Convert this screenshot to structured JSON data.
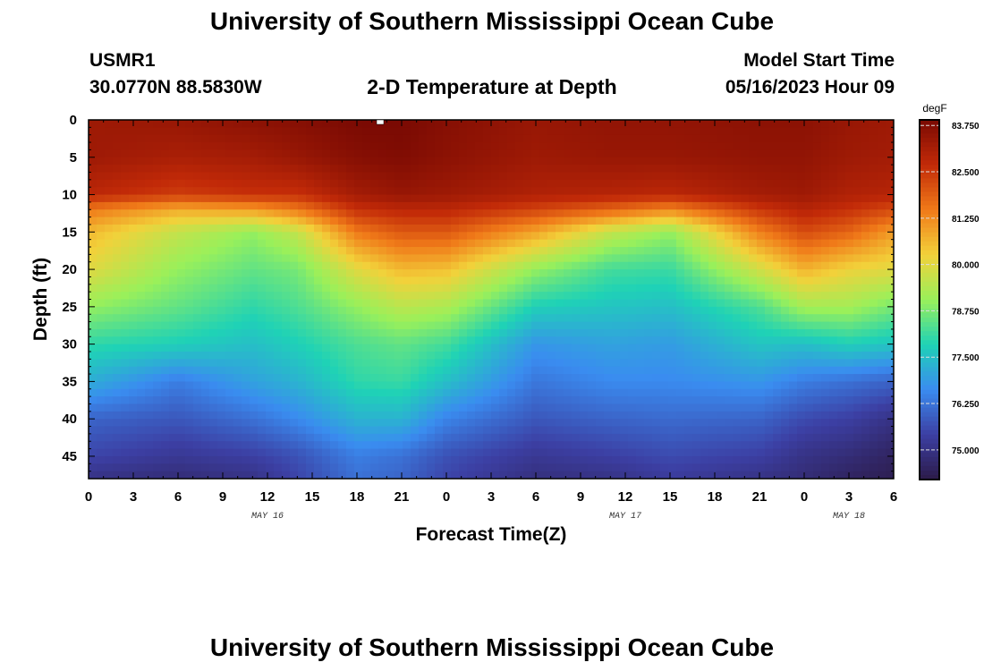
{
  "header": {
    "title": "University of Southern Mississippi Ocean Cube",
    "station_id": "USMR1",
    "coordinates": "30.0770N  88.5830W",
    "plot_title": "2-D Temperature at Depth",
    "model_label": "Model Start Time",
    "model_time": "05/16/2023 Hour 09"
  },
  "footer": {
    "title": "University of Southern Mississippi Ocean Cube"
  },
  "colors": {
    "scale": [
      "#2c1b4a",
      "#3c3fa3",
      "#3a8cf0",
      "#1fd2b6",
      "#9af05a",
      "#f2d13a",
      "#f07a19",
      "#c22a08",
      "#7a0a03"
    ]
  },
  "chart_data": {
    "type": "heatmap",
    "title": "2-D Temperature at Depth",
    "xlabel": "Forecast Time(Z)",
    "ylabel": "Depth (ft)",
    "x_hours_range": [
      0,
      54
    ],
    "y_depth_range": [
      0,
      48
    ],
    "x_tick_labels": [
      "0",
      "3",
      "6",
      "9",
      "12",
      "15",
      "18",
      "21",
      "0",
      "3",
      "6",
      "9",
      "12",
      "15",
      "18",
      "21",
      "0",
      "3",
      "6"
    ],
    "y_tick_labels": [
      "0",
      "5",
      "10",
      "15",
      "20",
      "25",
      "30",
      "35",
      "40",
      "45"
    ],
    "date_labels": [
      {
        "label": "MAY 16",
        "hour": 12
      },
      {
        "label": "MAY 17",
        "hour": 36
      },
      {
        "label": "MAY 18",
        "hour": 51
      }
    ],
    "colorbar": {
      "unit": "degF",
      "range": [
        74.2,
        83.9
      ],
      "labels": [
        "83.750",
        "82.500",
        "81.250",
        "80.000",
        "78.750",
        "77.500",
        "76.250",
        "75.000"
      ]
    },
    "profile_times_h": [
      0,
      6,
      11,
      14,
      18,
      21,
      24,
      30,
      35,
      39,
      45,
      48,
      51,
      54
    ],
    "profile_depths_ft": [
      0,
      5,
      10,
      12,
      15,
      20,
      25,
      30,
      35,
      40,
      45,
      48
    ],
    "temperature_degF": [
      [
        83.3,
        83.3,
        82.8,
        81.5,
        80.6,
        80.0,
        79.0,
        78.0,
        77.2,
        76.0,
        75.5,
        75.0
      ],
      [
        83.4,
        83.1,
        82.4,
        80.8,
        79.6,
        79.0,
        78.5,
        77.8,
        76.4,
        75.8,
        75.2,
        74.8
      ],
      [
        83.6,
        83.2,
        82.6,
        81.0,
        79.0,
        78.5,
        78.0,
        77.5,
        77.0,
        76.2,
        75.4,
        75.0
      ],
      [
        83.7,
        83.4,
        82.6,
        81.5,
        79.6,
        78.7,
        78.3,
        77.8,
        77.3,
        76.6,
        75.7,
        75.5
      ],
      [
        83.9,
        83.7,
        83.2,
        82.6,
        81.5,
        80.0,
        79.0,
        78.3,
        78.0,
        77.3,
        76.4,
        76.2
      ],
      [
        83.9,
        83.8,
        83.4,
        82.8,
        82.0,
        80.6,
        79.5,
        78.5,
        78.1,
        77.3,
        76.2,
        76.0
      ],
      [
        83.7,
        83.6,
        83.3,
        82.8,
        82.0,
        80.5,
        79.3,
        78.2,
        77.5,
        76.5,
        75.7,
        75.5
      ],
      [
        83.4,
        83.3,
        83.0,
        82.3,
        80.9,
        79.0,
        77.8,
        76.8,
        76.3,
        75.8,
        75.2,
        74.9
      ],
      [
        83.5,
        83.4,
        82.9,
        81.8,
        79.6,
        78.2,
        77.6,
        77.0,
        76.6,
        76.0,
        75.4,
        75.0
      ],
      [
        83.5,
        83.4,
        82.8,
        81.3,
        79.0,
        78.1,
        77.5,
        76.9,
        76.6,
        76.1,
        75.6,
        75.3
      ],
      [
        83.6,
        83.5,
        83.2,
        82.5,
        81.4,
        79.8,
        78.3,
        77.6,
        76.8,
        76.0,
        75.4,
        75.0
      ],
      [
        83.6,
        83.5,
        83.3,
        82.9,
        82.2,
        80.7,
        79.2,
        77.5,
        76.4,
        75.6,
        75.0,
        74.8
      ],
      [
        83.4,
        83.3,
        83.0,
        82.6,
        81.8,
        80.2,
        79.2,
        77.8,
        76.2,
        75.4,
        74.8,
        74.5
      ],
      [
        83.3,
        83.2,
        82.9,
        82.2,
        81.0,
        80.0,
        78.7,
        77.6,
        76.0,
        75.0,
        74.5,
        74.3
      ]
    ]
  }
}
